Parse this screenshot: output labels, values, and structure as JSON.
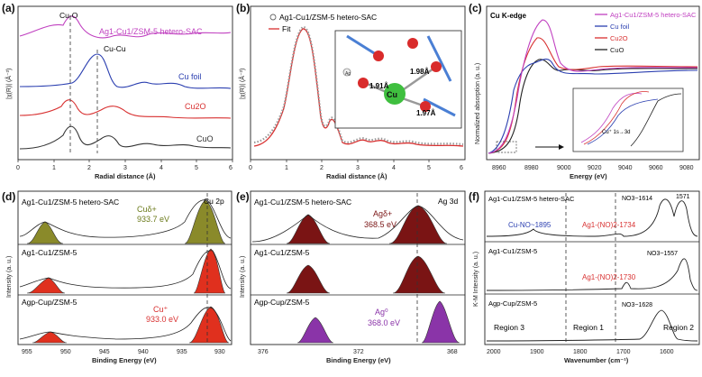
{
  "panels": {
    "a": {
      "label": "(a)",
      "ylabel": "|χ(R)| (Å⁻³)",
      "xlabel": "Radial distance (Å)",
      "xticks": [
        "0",
        "1",
        "2",
        "3",
        "4",
        "5",
        "6"
      ],
      "annotations": {
        "cu_o": "Cu-O",
        "cu_cu": "Cu-Cu"
      },
      "series": [
        "Ag1-Cu1/ZSM-5 hetero-SAC",
        "Cu foil",
        "Cu2O",
        "CuO"
      ],
      "colors": [
        "#c040c0",
        "#2b3fb0",
        "#d83030",
        "#333333"
      ]
    },
    "b": {
      "label": "(b)",
      "ylabel": "|χ(R)| (Å⁻³)",
      "xlabel": "Radial distance (Å)",
      "xticks": [
        "0",
        "1",
        "2",
        "3",
        "4",
        "5",
        "6"
      ],
      "legend_data": "Ag1-Cu1/ZSM-5 hetero-SAC",
      "legend_fit": "Fit",
      "inset": {
        "center": "Cu",
        "bonds": [
          "1.91Å",
          "1.98Å",
          "1.97Å"
        ],
        "atom": "Ag"
      }
    },
    "c": {
      "label": "(c)",
      "ylabel": "Normalized absorption (a. u.)",
      "xlabel": "Energy (eV)",
      "edge": "Cu K-edge",
      "xticks": [
        "8960",
        "8980",
        "9000",
        "9020",
        "9040",
        "9060",
        "9080"
      ],
      "legend": [
        "Ag1-Cu1/ZSM-5 hetero-SAC",
        "Cu foil",
        "Cu2O",
        "CuO"
      ],
      "colors": [
        "#c040c0",
        "#2b3fb0",
        "#d83030",
        "#222222"
      ],
      "inset_label": "Cu⁺ 1s→3d"
    },
    "d": {
      "label": "(d)",
      "ylabel": "Intensity (a. u.)",
      "xlabel": "Binding Energy (eV)",
      "xticks": [
        "955",
        "950",
        "945",
        "940",
        "935",
        "930"
      ],
      "rows": [
        "Ag1-Cu1/ZSM-5 hetero-SAC",
        "Ag1-Cu1/ZSM-5",
        "Agp-Cup/ZSM-5"
      ],
      "corner": "Cu 2p",
      "ann_top": "Cuδ+",
      "ann_top_val": "933.7 eV",
      "ann_bot": "Cu⁺",
      "ann_bot_val": "933.0 eV"
    },
    "e": {
      "label": "(e)",
      "ylabel": "Intensity (a. u.)",
      "xlabel": "Binding Energy (eV)",
      "xticks": [
        "376",
        "372",
        "368"
      ],
      "rows": [
        "Ag1-Cu1/ZSM-5 hetero-SAC",
        "Ag1-Cu1/ZSM-5",
        "Agp-Cup/ZSM-5"
      ],
      "corner": "Ag 3d",
      "ann_top": "Agδ+",
      "ann_top_val": "368.5 eV",
      "ann_bot": "Ag⁰",
      "ann_bot_val": "368.0 eV"
    },
    "f": {
      "label": "(f)",
      "ylabel": "K-M Intensity (a. u.)",
      "xlabel": "Wavenumber (cm⁻¹)",
      "xticks": [
        "2000",
        "1900",
        "1800",
        "1700",
        "1600"
      ],
      "rows": [
        "Ag1-Cu1/ZSM-5 hetero-SAC",
        "Ag1-Cu1/ZSM-5",
        "Agp-Cup/ZSM-5"
      ],
      "ann": {
        "cuno": "Cu-NO~1895",
        "agno1": "Ag1-(NO)2-1734",
        "agno2": "Ag1-(NO)2-1730",
        "no3a": "NO3~1614",
        "no3a2": "1571",
        "no3b": "NO3~1557",
        "no3c": "NO3~1628"
      },
      "regions": [
        "Region 3",
        "Region 1",
        "Region 2"
      ]
    }
  }
}
